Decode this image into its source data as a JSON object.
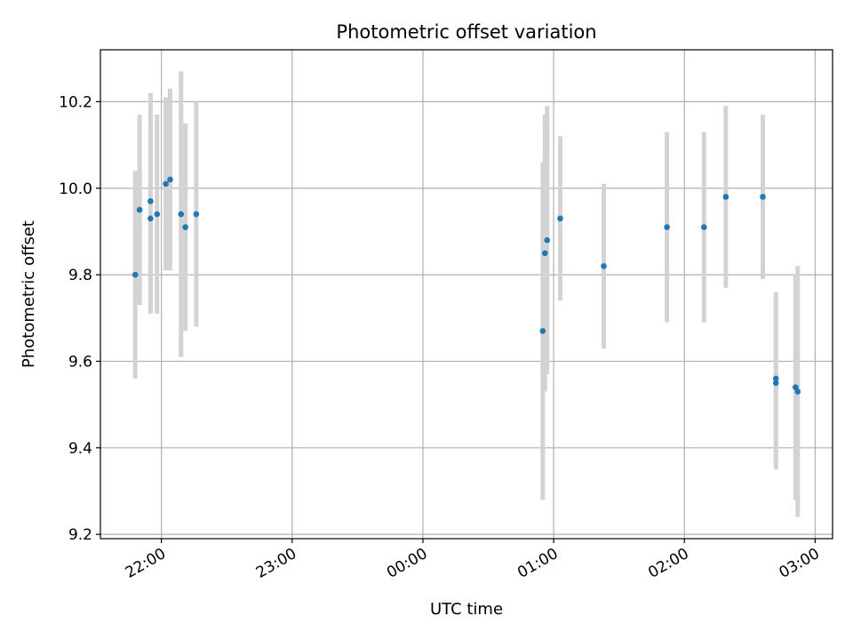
{
  "chart_data": {
    "type": "scatter",
    "title": "Photometric offset variation",
    "xlabel": "UTC time",
    "ylabel": "Photometric offset",
    "x_axis": {
      "kind": "time",
      "range": [
        "2000-01-01T21:32:00",
        "2000-01-02T03:08:00"
      ],
      "ticks": [
        {
          "t": "2000-01-01T22:00:00",
          "label": "22:00"
        },
        {
          "t": "2000-01-01T23:00:00",
          "label": "23:00"
        },
        {
          "t": "2000-01-02T00:00:00",
          "label": "00:00"
        },
        {
          "t": "2000-01-02T01:00:00",
          "label": "01:00"
        },
        {
          "t": "2000-01-02T02:00:00",
          "label": "02:00"
        },
        {
          "t": "2000-01-02T03:00:00",
          "label": "03:00"
        }
      ]
    },
    "y_axis": {
      "range": [
        9.19,
        10.32
      ],
      "ticks": [
        {
          "v": 9.2,
          "label": "9.2"
        },
        {
          "v": 9.4,
          "label": "9.4"
        },
        {
          "v": 9.6,
          "label": "9.6"
        },
        {
          "v": 9.8,
          "label": "9.8"
        },
        {
          "v": 10.0,
          "label": "10.0"
        },
        {
          "v": 10.2,
          "label": "10.2"
        }
      ]
    },
    "grid": true,
    "colors": {
      "point": "#1f77b4",
      "errorbar": "#d3d3d3",
      "grid": "#b0b0b0"
    },
    "points": [
      {
        "t": "2000-01-01T21:48:00",
        "y": 9.8,
        "err": 0.24
      },
      {
        "t": "2000-01-01T21:50:00",
        "y": 9.95,
        "err": 0.22
      },
      {
        "t": "2000-01-01T21:55:00",
        "y": 9.93,
        "err": 0.22
      },
      {
        "t": "2000-01-01T21:55:00",
        "y": 9.97,
        "err": 0.25
      },
      {
        "t": "2000-01-01T21:58:00",
        "y": 9.94,
        "err": 0.23
      },
      {
        "t": "2000-01-01T22:02:00",
        "y": 10.01,
        "err": 0.2
      },
      {
        "t": "2000-01-01T22:04:00",
        "y": 10.02,
        "err": 0.21
      },
      {
        "t": "2000-01-01T22:09:00",
        "y": 9.94,
        "err": 0.33
      },
      {
        "t": "2000-01-01T22:11:00",
        "y": 9.91,
        "err": 0.24
      },
      {
        "t": "2000-01-01T22:16:00",
        "y": 9.94,
        "err": 0.26
      },
      {
        "t": "2000-01-02T00:55:00",
        "y": 9.67,
        "err": 0.39
      },
      {
        "t": "2000-01-02T00:56:00",
        "y": 9.85,
        "err": 0.32
      },
      {
        "t": "2000-01-02T00:57:00",
        "y": 9.88,
        "err": 0.31
      },
      {
        "t": "2000-01-02T01:03:00",
        "y": 9.93,
        "err": 0.19
      },
      {
        "t": "2000-01-02T01:23:00",
        "y": 9.82,
        "err": 0.19
      },
      {
        "t": "2000-01-02T01:52:00",
        "y": 9.91,
        "err": 0.22
      },
      {
        "t": "2000-01-02T02:09:00",
        "y": 9.91,
        "err": 0.22
      },
      {
        "t": "2000-01-02T02:19:00",
        "y": 9.98,
        "err": 0.21
      },
      {
        "t": "2000-01-02T02:36:00",
        "y": 9.98,
        "err": 0.19
      },
      {
        "t": "2000-01-02T02:42:00",
        "y": 9.55,
        "err": 0.2
      },
      {
        "t": "2000-01-02T02:42:00",
        "y": 9.56,
        "err": 0.2
      },
      {
        "t": "2000-01-02T02:51:00",
        "y": 9.54,
        "err": 0.26
      },
      {
        "t": "2000-01-02T02:52:00",
        "y": 9.53,
        "err": 0.29
      }
    ]
  }
}
